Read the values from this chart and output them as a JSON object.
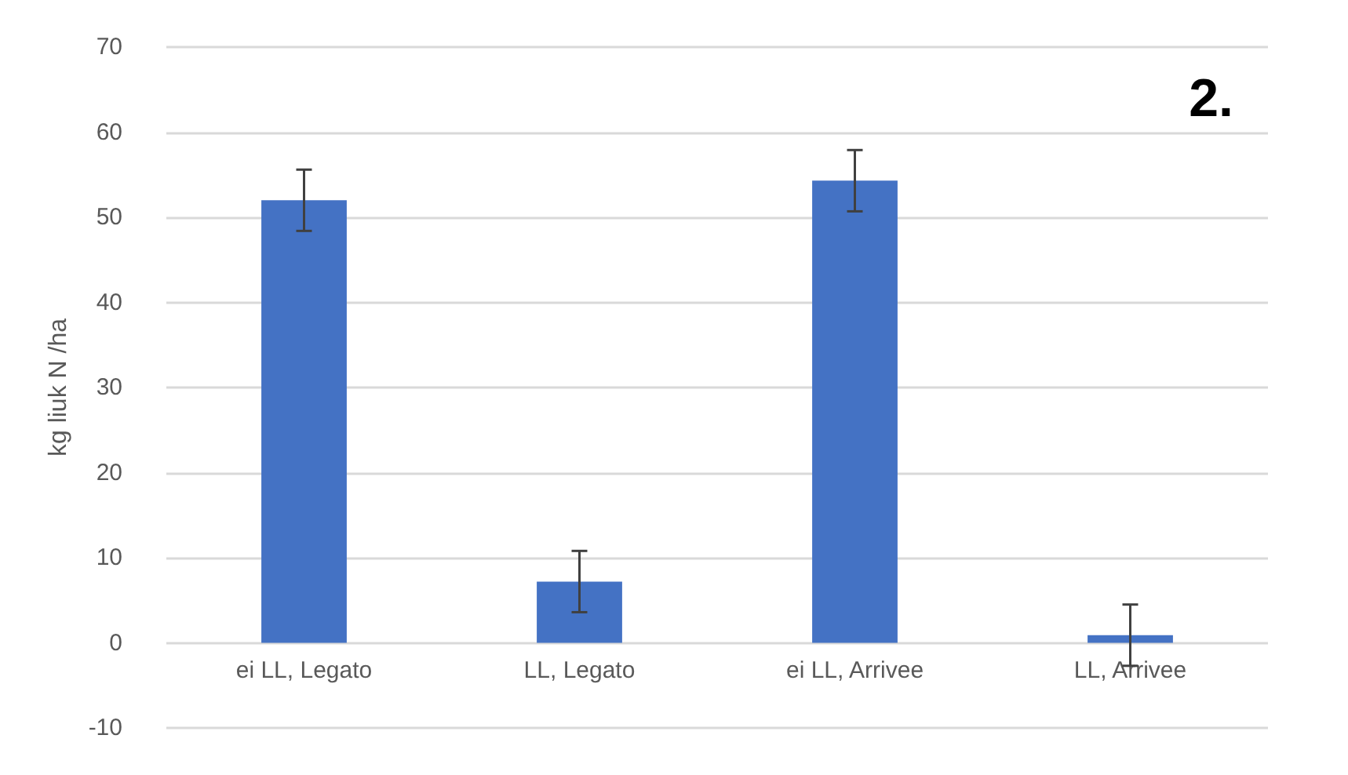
{
  "chart_data": {
    "type": "bar",
    "ylabel": "kg liuk N /ha",
    "annotations": [
      "2."
    ],
    "categories": [
      "ei LL, Legato",
      "LL, Legato",
      "ei LL, Arrivee",
      "LL, Arrivee"
    ],
    "values": [
      52.0,
      7.2,
      54.3,
      0.9
    ],
    "errors": [
      3.6,
      3.6,
      3.6,
      3.6
    ],
    "color": "#4472c4",
    "ylim": [
      -10,
      70
    ],
    "yticks": [
      -10,
      0,
      10,
      20,
      30,
      40,
      50,
      60,
      70
    ],
    "grid": "y"
  }
}
